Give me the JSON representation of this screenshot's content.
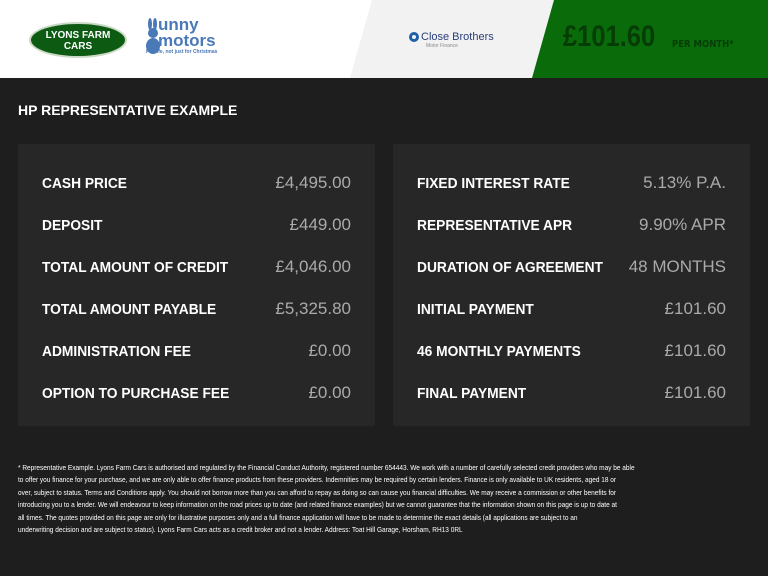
{
  "header": {
    "dealer_logo": "LYONS FARM CARS",
    "partner_logo": {
      "line1": "unny",
      "line2": "motors",
      "tagline": "For life, not just for Christmas"
    },
    "lender_logo": {
      "name": "Close Brothers",
      "sub": "Motor Finance"
    },
    "monthly_price": "£101.60",
    "per_month_label": "PER MONTH*",
    "accent_color": "#0a6b0a"
  },
  "title": "HP REPRESENTATIVE EXAMPLE",
  "left_panel": [
    {
      "label": "CASH PRICE",
      "value": "£4,495.00"
    },
    {
      "label": "DEPOSIT",
      "value": "£449.00"
    },
    {
      "label": "TOTAL AMOUNT OF CREDIT",
      "value": "£4,046.00"
    },
    {
      "label": "TOTAL AMOUNT PAYABLE",
      "value": "£5,325.80"
    },
    {
      "label": "ADMINISTRATION FEE",
      "value": "£0.00"
    },
    {
      "label": "OPTION TO PURCHASE FEE",
      "value": "£0.00"
    }
  ],
  "right_panel": [
    {
      "label": "FIXED INTEREST RATE",
      "value": "5.13% P.A."
    },
    {
      "label": "REPRESENTATIVE APR",
      "value": "9.90% APR"
    },
    {
      "label": "DURATION OF AGREEMENT",
      "value": "48 MONTHS"
    },
    {
      "label": "INITIAL PAYMENT",
      "value": "£101.60"
    },
    {
      "label": "46 MONTHLY PAYMENTS",
      "value": "£101.60"
    },
    {
      "label": "FINAL PAYMENT",
      "value": "£101.60"
    }
  ],
  "footer_lines": [
    "* Representative Example. Lyons Farm Cars is authorised and regulated by the Financial Conduct Authority, registered number 654443. We work with a number of carefully selected credit providers who may be able",
    "to offer you finance for your purchase, and we are only able to offer finance products from these providers. Indemnities may be required by certain lenders. Finance is only available to UK residents, aged 18 or",
    "over, subject to status. Terms and Conditions apply. You should not borrow more than you can afford to repay as doing so can cause you financial difficulties. We may receive a commission or other benefits for",
    "introducing you to a lender. We will endeavour to keep information on the road prices up to date (and related finance examples) but we cannot guarantee that the information shown on this page is up to date at",
    "all times. The quotes provided on this page are only for illustrative purposes only and a full finance application will have to be made to determine the exact details (all applications are subject to an",
    "underwriting decision and are subject to status). Lyons Farm Cars acts as a credit broker and not a lender. Address:  Toat Hill Garage, Horsham, RH13 0RL"
  ]
}
